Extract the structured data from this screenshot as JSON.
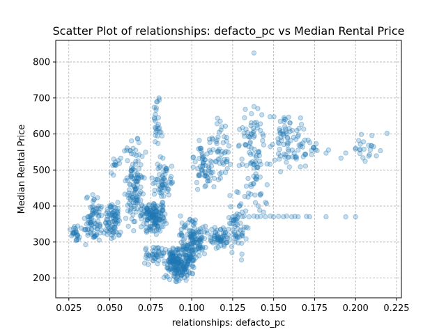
{
  "chart_data": {
    "type": "scatter",
    "title": "Scatter Plot of relationships: defacto_pc vs Median Rental Price",
    "xlabel": "relationships: defacto_pc",
    "ylabel": "Median Rental Price",
    "xlim": [
      0.017,
      0.228
    ],
    "ylim": [
      145,
      860
    ],
    "xticks": [
      0.025,
      0.05,
      0.075,
      0.1,
      0.125,
      0.15,
      0.175,
      0.2,
      0.225
    ],
    "xtick_labels": [
      "0.025",
      "0.050",
      "0.075",
      "0.100",
      "0.125",
      "0.150",
      "0.175",
      "0.200",
      "0.225"
    ],
    "yticks": [
      200,
      300,
      400,
      500,
      600,
      700,
      800
    ],
    "ytick_labels": [
      "200",
      "300",
      "400",
      "500",
      "600",
      "700",
      "800"
    ],
    "grid": true,
    "color": "#1f77b4",
    "alpha": 0.25,
    "clusters": [
      {
        "x": [
          0.025,
          0.034
        ],
        "y": [
          295,
          350
        ],
        "n": 25
      },
      {
        "x": [
          0.034,
          0.046
        ],
        "y": [
          290,
          435
        ],
        "n": 80
      },
      {
        "x": [
          0.046,
          0.058
        ],
        "y": [
          300,
          420
        ],
        "n": 80
      },
      {
        "x": [
          0.05,
          0.058
        ],
        "y": [
          480,
          540
        ],
        "n": 12
      },
      {
        "x": [
          0.058,
          0.072
        ],
        "y": [
          320,
          600
        ],
        "n": 120
      },
      {
        "x": [
          0.068,
          0.085
        ],
        "y": [
          320,
          420
        ],
        "n": 150
      },
      {
        "x": [
          0.07,
          0.085
        ],
        "y": [
          230,
          300
        ],
        "n": 40
      },
      {
        "x": [
          0.076,
          0.082
        ],
        "y": [
          560,
          700
        ],
        "n": 25
      },
      {
        "x": [
          0.075,
          0.09
        ],
        "y": [
          400,
          540
        ],
        "n": 60
      },
      {
        "x": [
          0.082,
          0.102
        ],
        "y": [
          185,
          300
        ],
        "n": 220
      },
      {
        "x": [
          0.092,
          0.11
        ],
        "y": [
          240,
          380
        ],
        "n": 130
      },
      {
        "x": [
          0.1,
          0.115
        ],
        "y": [
          420,
          600
        ],
        "n": 60
      },
      {
        "x": [
          0.108,
          0.125
        ],
        "y": [
          280,
          350
        ],
        "n": 60
      },
      {
        "x": [
          0.11,
          0.125
        ],
        "y": [
          450,
          650
        ],
        "n": 50
      },
      {
        "x": [
          0.12,
          0.135
        ],
        "y": [
          240,
          460
        ],
        "n": 60
      },
      {
        "x": [
          0.128,
          0.145
        ],
        "y": [
          500,
          680
        ],
        "n": 55
      },
      {
        "x": [
          0.13,
          0.15
        ],
        "y": [
          360,
          580
        ],
        "n": 45
      },
      {
        "x": [
          0.145,
          0.17
        ],
        "y": [
          490,
          670
        ],
        "n": 70
      },
      {
        "x": [
          0.16,
          0.185
        ],
        "y": [
          500,
          600
        ],
        "n": 25
      },
      {
        "x": [
          0.19,
          0.22
        ],
        "y": [
          495,
          620
        ],
        "n": 25
      }
    ],
    "points": [
      [
        0.138,
        825
      ],
      [
        0.08,
        700
      ],
      [
        0.079,
        690
      ],
      [
        0.125,
        370
      ],
      [
        0.128,
        370
      ],
      [
        0.132,
        372
      ],
      [
        0.135,
        370
      ],
      [
        0.138,
        372
      ],
      [
        0.14,
        370
      ],
      [
        0.142,
        371
      ],
      [
        0.145,
        370
      ],
      [
        0.148,
        372
      ],
      [
        0.15,
        370
      ],
      [
        0.153,
        371
      ],
      [
        0.156,
        370
      ],
      [
        0.158,
        372
      ],
      [
        0.161,
        370
      ],
      [
        0.163,
        371
      ],
      [
        0.165,
        370
      ],
      [
        0.17,
        371
      ],
      [
        0.172,
        370
      ],
      [
        0.182,
        370
      ],
      [
        0.194,
        370
      ],
      [
        0.2,
        370
      ]
    ]
  }
}
